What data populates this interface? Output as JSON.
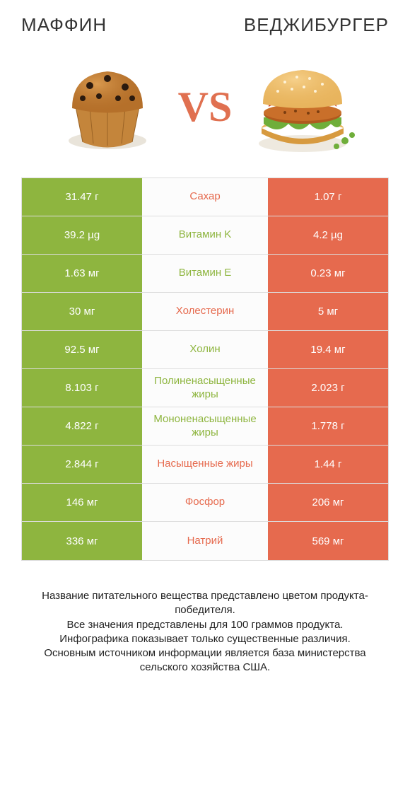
{
  "left_title": "МАФФИН",
  "right_title": "ВЕДЖИБУРГЕР",
  "vs": "VS",
  "colors": {
    "left": "#8eb53f",
    "right": "#e66a4e",
    "bg": "#ffffff",
    "row_bg": "#fcfcfc",
    "border": "#dddddd",
    "text": "#333333"
  },
  "rows": [
    {
      "label": "Сахар",
      "left": "31.47 г",
      "right": "1.07 г",
      "winner": "right"
    },
    {
      "label": "Витамин K",
      "left": "39.2 µg",
      "right": "4.2 µg",
      "winner": "left"
    },
    {
      "label": "Витамин E",
      "left": "1.63 мг",
      "right": "0.23 мг",
      "winner": "left"
    },
    {
      "label": "Холестерин",
      "left": "30 мг",
      "right": "5 мг",
      "winner": "right"
    },
    {
      "label": "Холин",
      "left": "92.5 мг",
      "right": "19.4 мг",
      "winner": "left"
    },
    {
      "label": "Полиненасыщенные жиры",
      "left": "8.103 г",
      "right": "2.023 г",
      "winner": "left"
    },
    {
      "label": "Мононенасыщенные жиры",
      "left": "4.822 г",
      "right": "1.778 г",
      "winner": "left"
    },
    {
      "label": "Насыщенные жиры",
      "left": "2.844 г",
      "right": "1.44 г",
      "winner": "right"
    },
    {
      "label": "Фосфор",
      "left": "146 мг",
      "right": "206 мг",
      "winner": "right"
    },
    {
      "label": "Натрий",
      "left": "336 мг",
      "right": "569 мг",
      "winner": "right"
    }
  ],
  "footnote": "Название питательного вещества представлено цветом продукта-победителя.\nВсе значения представлены для 100 граммов продукта.\nИнфографика показывает только существенные различия.\nОсновным источником информации является база министерства сельского хозяйства США."
}
